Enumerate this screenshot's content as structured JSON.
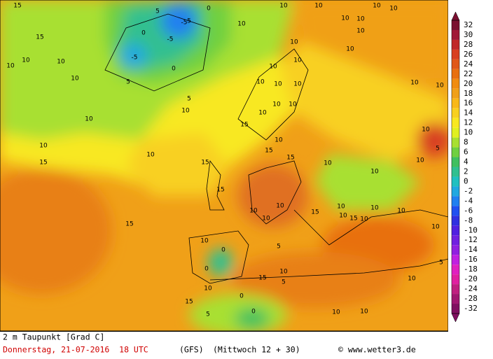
{
  "map": {
    "contour_labels": [
      15,
      5,
      0,
      -5,
      0,
      -5,
      -5,
      0,
      5,
      10,
      15,
      10,
      10,
      10,
      10,
      10,
      15,
      10,
      15,
      15,
      15,
      10,
      0,
      0,
      10,
      15,
      5,
      0,
      0,
      15,
      10,
      5,
      5,
      10,
      15,
      10,
      15,
      10,
      10,
      10,
      10,
      10,
      10,
      5,
      10,
      5,
      10,
      10,
      10,
      10,
      10,
      10,
      10,
      10,
      10,
      10,
      10,
      10,
      10,
      10,
      10,
      10,
      15,
      15,
      10,
      15,
      10,
      5,
      10,
      10,
      10,
      10,
      10,
      10,
      10,
      10,
      5,
      10,
      10,
      10
    ]
  },
  "legend": {
    "levels": [
      32,
      30,
      28,
      26,
      24,
      22,
      20,
      18,
      16,
      14,
      12,
      10,
      8,
      6,
      4,
      2,
      0,
      -2,
      -4,
      -6,
      -8,
      -10,
      -12,
      -14,
      -16,
      -18,
      -20,
      -24,
      -28,
      -32
    ],
    "colors": [
      "#7a1030",
      "#a01838",
      "#c02828",
      "#d84020",
      "#e05818",
      "#e87010",
      "#f08c10",
      "#f0a018",
      "#f8b818",
      "#f8d020",
      "#f8e820",
      "#e0f020",
      "#a8e030",
      "#70d040",
      "#40c060",
      "#30c090",
      "#20c0c0",
      "#20a8e0",
      "#2080f0",
      "#2050f0",
      "#3030e0",
      "#5020e0",
      "#7020e0",
      "#9020e0",
      "#c020e0",
      "#e020c0",
      "#e020a0",
      "#c02080",
      "#a01870",
      "#801060"
    ]
  },
  "footer": {
    "variable": "2 m Taupunkt [Grad C]",
    "valid_time": "Donnerstag, 21-07-2016  18 UTC",
    "model": "(GFS)",
    "run": "(Mittwoch 12 + 30)",
    "credit": "© www.wetter3.de"
  }
}
